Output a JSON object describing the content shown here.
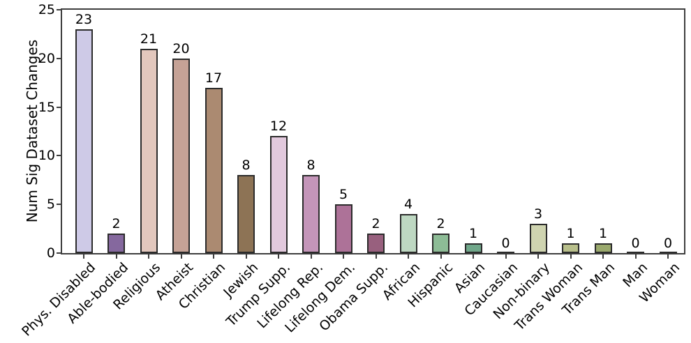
{
  "chart_data": {
    "type": "bar",
    "title": "",
    "xlabel": "",
    "ylabel": "Num Sig Dataset Changes",
    "ylim": [
      0,
      25
    ],
    "yticks": [
      0,
      5,
      10,
      15,
      20,
      25
    ],
    "grid": false,
    "legend": null,
    "categories": [
      "Phys. Disabled",
      "Able-bodied",
      "Religious",
      "Atheist",
      "Christian",
      "Jewish",
      "Trump Supp.",
      "Lifelong Rep.",
      "Lifelong Dem.",
      "Obama Supp.",
      "African",
      "Hispanic",
      "Asian",
      "Caucasian",
      "Non-binary",
      "Trans Woman",
      "Trans Man",
      "Man",
      "Woman"
    ],
    "values": [
      23,
      2,
      21,
      20,
      17,
      8,
      12,
      8,
      5,
      2,
      4,
      2,
      1,
      0,
      3,
      1,
      1,
      0,
      0
    ],
    "bar_colors": [
      "#cecae7",
      "#85689e",
      "#e2c7bd",
      "#c5a296",
      "#ab8a71",
      "#8d7355",
      "#e2c9dd",
      "#c495b9",
      "#ad7298",
      "#98607e",
      "#bed8c2",
      "#8dbc96",
      "#70a78a",
      null,
      "#cfd4b0",
      "#b8bf8b",
      "#9aa96d",
      null,
      null
    ],
    "bar_edge_color": "#2b2b2b",
    "spine_color": "#3d3d3d",
    "text_color": "#000000"
  }
}
